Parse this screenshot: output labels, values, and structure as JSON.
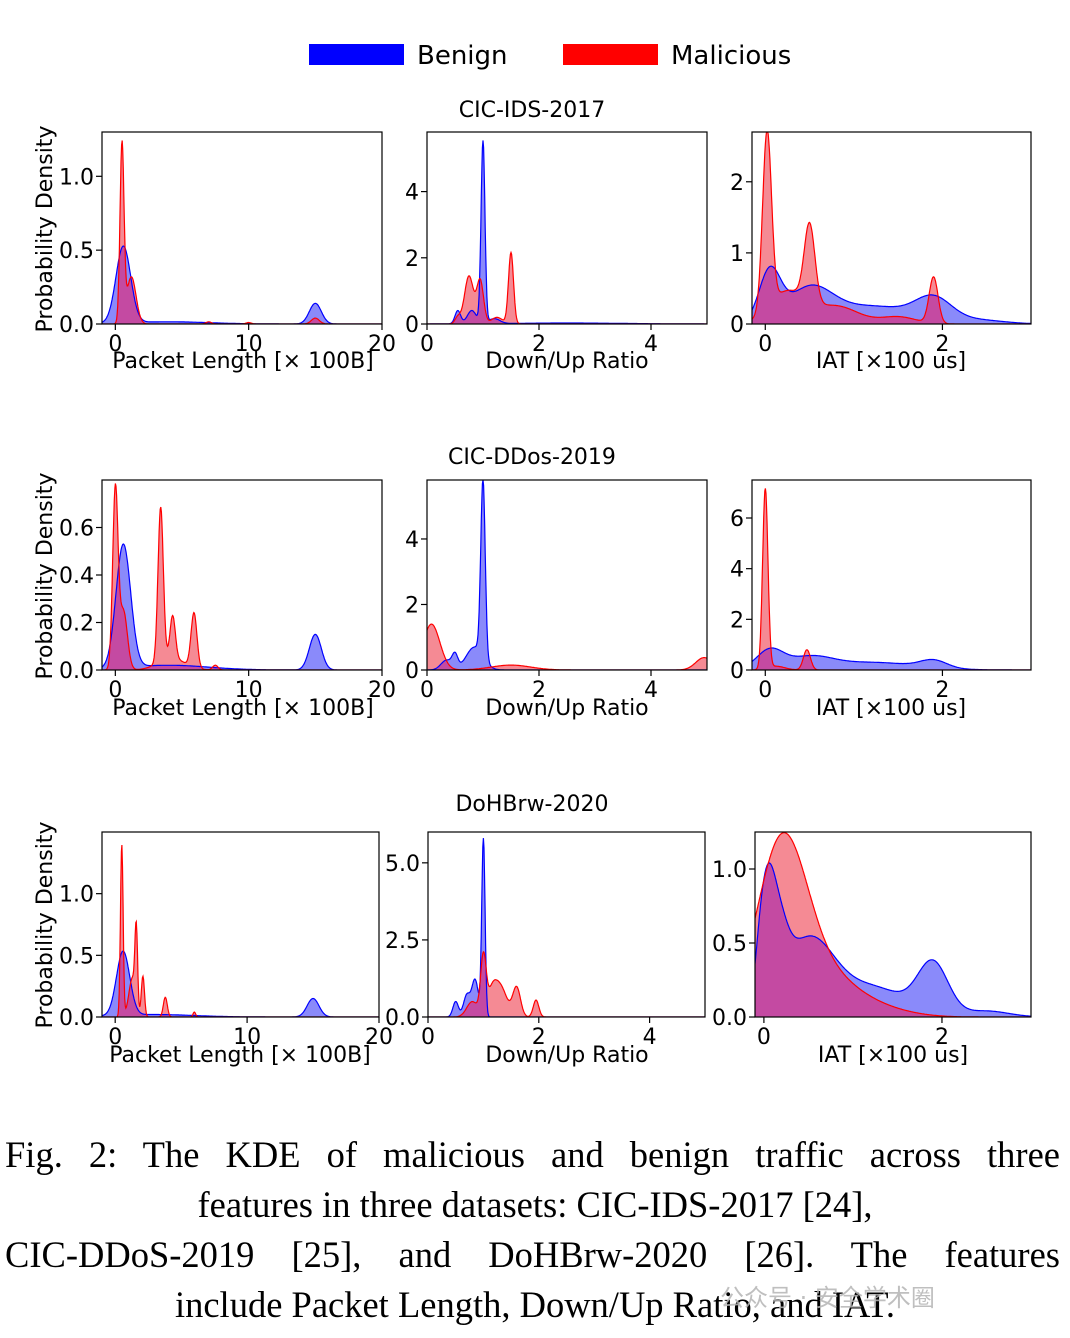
{
  "legend": {
    "items": [
      {
        "label": "Benign",
        "color": "#0000ff"
      },
      {
        "label": "Malicious",
        "color": "#ff0000"
      }
    ]
  },
  "colors": {
    "benign_fill": "#8a8afa",
    "malicious_fill": "#f58a94",
    "overlap_fill": "#c44aa2"
  },
  "row_titles": [
    "CIC-IDS-2017",
    "CIC-DDos-2019",
    "DoHBrw-2020"
  ],
  "axis_labels": {
    "ylabel": "Probability Density",
    "x_packet": "Packet Length [× 100B]",
    "x_ratio": "Down/Up Ratio",
    "x_iat": "IAT [×100 us]"
  },
  "caption": {
    "lines": [
      "Fig. 2: The KDE of malicious and benign traffic across three",
      "features in three datasets: CIC-IDS-2017 [24],",
      "CIC-DDoS-2019 [25], and DoHBrw-2020 [26]. The features",
      "include Packet Length, Down/Up Ratio, and IAT."
    ]
  },
  "watermark": "公众号 · 安全学术圈",
  "chart_data": [
    {
      "type": "area",
      "dataset": "CIC-IDS-2017",
      "feature": "Packet Length",
      "xlabel": "Packet Length [× 100B]",
      "ylabel": "Probability Density",
      "xlim": [
        -1,
        20
      ],
      "ylim": [
        0,
        1.3
      ],
      "xticks": [
        "0",
        "10",
        "20"
      ],
      "yticks": [
        "0.0",
        "0.5",
        "1.0"
      ],
      "series": [
        {
          "name": "Benign",
          "peaks": [
            [
              0.6,
              0.52,
              0.55
            ],
            [
              15,
              0.14,
              0.45
            ],
            [
              4,
              0.015,
              3
            ]
          ]
        },
        {
          "name": "Malicious",
          "peaks": [
            [
              0.5,
              1.2,
              0.15
            ],
            [
              1.2,
              0.32,
              0.35
            ],
            [
              7,
              0.015,
              0.2
            ],
            [
              15,
              0.04,
              0.3
            ],
            [
              10,
              0.01,
              0.2
            ]
          ]
        }
      ]
    },
    {
      "type": "area",
      "dataset": "CIC-IDS-2017",
      "feature": "Down/Up Ratio",
      "xlabel": "Down/Up Ratio",
      "ylim": [
        0,
        5.8
      ],
      "xlim": [
        0,
        5
      ],
      "xticks": [
        "0",
        "2",
        "4"
      ],
      "yticks": [
        "0",
        "2",
        "4"
      ],
      "series": [
        {
          "name": "Benign",
          "peaks": [
            [
              1.0,
              5.5,
              0.035
            ],
            [
              0.55,
              0.4,
              0.05
            ],
            [
              0.8,
              0.4,
              0.08
            ],
            [
              1.2,
              0.15,
              0.1
            ],
            [
              2.5,
              0.03,
              1
            ]
          ]
        },
        {
          "name": "Malicious",
          "peaks": [
            [
              0.75,
              1.45,
              0.08
            ],
            [
              0.95,
              1.3,
              0.06
            ],
            [
              1.5,
              2.15,
              0.045
            ],
            [
              0.55,
              0.2,
              0.05
            ],
            [
              1.25,
              0.2,
              0.1
            ]
          ]
        }
      ]
    },
    {
      "type": "area",
      "dataset": "CIC-IDS-2017",
      "feature": "IAT",
      "xlabel": "IAT [×100 us]",
      "ylim": [
        0,
        2.7
      ],
      "xlim": [
        -0.15,
        3.0
      ],
      "xticks": [
        "0",
        "2"
      ],
      "yticks": [
        "0",
        "1",
        "2"
      ],
      "series": [
        {
          "name": "Benign",
          "peaks": [
            [
              0.05,
              0.7,
              0.12
            ],
            [
              0.5,
              0.45,
              0.25
            ],
            [
              1.2,
              0.25,
              0.5
            ],
            [
              1.9,
              0.3,
              0.2
            ],
            [
              2.4,
              0.05,
              0.3
            ]
          ]
        },
        {
          "name": "Malicious",
          "peaks": [
            [
              0.02,
              2.5,
              0.05
            ],
            [
              0.5,
              1.1,
              0.06
            ],
            [
              0.25,
              0.45,
              0.2
            ],
            [
              0.8,
              0.25,
              0.25
            ],
            [
              1.9,
              0.65,
              0.05
            ],
            [
              1.5,
              0.1,
              0.2
            ]
          ]
        }
      ]
    },
    {
      "type": "area",
      "dataset": "CIC-DDos-2019",
      "feature": "Packet Length",
      "xlabel": "Packet Length [× 100B]",
      "ylabel": "Probability Density",
      "xlim": [
        -1,
        20
      ],
      "ylim": [
        0,
        0.8
      ],
      "xticks": [
        "0",
        "10",
        "20"
      ],
      "yticks": [
        "0.0",
        "0.2",
        "0.4",
        "0.6"
      ],
      "series": [
        {
          "name": "Benign",
          "peaks": [
            [
              0.6,
              0.52,
              0.55
            ],
            [
              15,
              0.15,
              0.45
            ],
            [
              4,
              0.02,
              3
            ]
          ]
        },
        {
          "name": "Malicious",
          "peaks": [
            [
              0.0,
              0.75,
              0.2
            ],
            [
              0.6,
              0.25,
              0.3
            ],
            [
              3.4,
              0.65,
              0.2
            ],
            [
              4.3,
              0.18,
              0.2
            ],
            [
              5.9,
              0.23,
              0.22
            ],
            [
              4.2,
              0.05,
              1
            ],
            [
              7.5,
              0.02,
              0.2
            ]
          ]
        }
      ]
    },
    {
      "type": "area",
      "dataset": "CIC-DDos-2019",
      "feature": "Down/Up Ratio",
      "xlabel": "Down/Up Ratio",
      "ylim": [
        0,
        5.8
      ],
      "xlim": [
        0,
        5
      ],
      "xticks": [
        "0",
        "2",
        "4"
      ],
      "yticks": [
        "0",
        "2",
        "4"
      ],
      "series": [
        {
          "name": "Benign",
          "peaks": [
            [
              1.0,
              5.4,
              0.04
            ],
            [
              0.5,
              0.4,
              0.05
            ],
            [
              0.85,
              0.7,
              0.15
            ],
            [
              0.35,
              0.3,
              0.1
            ]
          ]
        },
        {
          "name": "Malicious",
          "peaks": [
            [
              0.08,
              1.4,
              0.15
            ],
            [
              1.5,
              0.15,
              0.35
            ],
            [
              4.95,
              0.38,
              0.15
            ]
          ]
        }
      ]
    },
    {
      "type": "area",
      "dataset": "CIC-DDos-2019",
      "feature": "IAT",
      "xlabel": "IAT [×100 us]",
      "ylim": [
        0,
        7.5
      ],
      "xlim": [
        -0.15,
        3.0
      ],
      "xticks": [
        "0",
        "2"
      ],
      "yticks": [
        "0",
        "2",
        "4",
        "6"
      ],
      "series": [
        {
          "name": "Benign",
          "peaks": [
            [
              0.05,
              0.75,
              0.15
            ],
            [
              0.5,
              0.45,
              0.25
            ],
            [
              1.2,
              0.3,
              0.5
            ],
            [
              1.9,
              0.3,
              0.15
            ]
          ]
        },
        {
          "name": "Malicious",
          "peaks": [
            [
              0.0,
              7.1,
              0.03
            ],
            [
              0.47,
              0.8,
              0.04
            ],
            [
              0.12,
              0.15,
              0.1
            ]
          ]
        }
      ]
    },
    {
      "type": "area",
      "dataset": "DoHBrw-2020",
      "feature": "Packet Length",
      "xlabel": "Packet Length [× 100B]",
      "ylabel": "Probability Density",
      "xlim": [
        -1,
        20
      ],
      "ylim": [
        0,
        1.5
      ],
      "xticks": [
        "0",
        "10",
        "20"
      ],
      "yticks": [
        "0.0",
        "0.5",
        "1.0"
      ],
      "series": [
        {
          "name": "Benign",
          "peaks": [
            [
              0.6,
              0.52,
              0.5
            ],
            [
              15,
              0.15,
              0.45
            ],
            [
              3,
              0.02,
              3
            ]
          ]
        },
        {
          "name": "Malicious",
          "peaks": [
            [
              0.5,
              1.4,
              0.1
            ],
            [
              1.2,
              0.2,
              0.25
            ],
            [
              1.6,
              0.63,
              0.1
            ],
            [
              2.1,
              0.33,
              0.12
            ],
            [
              3.8,
              0.16,
              0.15
            ],
            [
              6.0,
              0.04,
              0.1
            ],
            [
              1.4,
              0.15,
              0.2
            ]
          ]
        }
      ]
    },
    {
      "type": "area",
      "dataset": "DoHBrw-2020",
      "feature": "Down/Up Ratio",
      "xlabel": "Down/Up Ratio",
      "ylim": [
        0,
        6.0
      ],
      "xlim": [
        0,
        5
      ],
      "xticks": [
        "0",
        "2",
        "4"
      ],
      "yticks": [
        "0.0",
        "2.5",
        "5.0"
      ],
      "series": [
        {
          "name": "Benign",
          "peaks": [
            [
              1.0,
              5.75,
              0.03
            ],
            [
              0.5,
              0.5,
              0.05
            ],
            [
              0.7,
              0.7,
              0.06
            ],
            [
              0.85,
              1.2,
              0.06
            ]
          ]
        },
        {
          "name": "Malicious",
          "peaks": [
            [
              1.0,
              1.9,
              0.05
            ],
            [
              0.8,
              0.5,
              0.1
            ],
            [
              1.3,
              1.0,
              0.12
            ],
            [
              1.6,
              0.95,
              0.07
            ],
            [
              1.95,
              0.55,
              0.05
            ],
            [
              1.15,
              0.6,
              0.08
            ]
          ]
        }
      ]
    },
    {
      "type": "area",
      "dataset": "DoHBrw-2020",
      "feature": "IAT",
      "xlabel": "IAT [×100 us]",
      "ylim": [
        0,
        1.25
      ],
      "xlim": [
        -0.1,
        3.0
      ],
      "xticks": [
        "0",
        "2"
      ],
      "yticks": [
        "0.0",
        "0.5",
        "1.0"
      ],
      "series": [
        {
          "name": "Benign",
          "peaks": [
            [
              0.02,
              0.45,
              0.08
            ],
            [
              0.12,
              0.55,
              0.12
            ],
            [
              0.5,
              0.5,
              0.28
            ],
            [
              1.2,
              0.2,
              0.4
            ],
            [
              1.9,
              0.34,
              0.17
            ],
            [
              2.5,
              0.04,
              0.25
            ],
            [
              -0.05,
              0.1,
              0.05
            ]
          ]
        },
        {
          "name": "Malicious",
          "peaks": [
            [
              0.2,
              1.15,
              0.28
            ],
            [
              0.7,
              0.25,
              0.35
            ],
            [
              1.3,
              0.05,
              0.35
            ]
          ]
        }
      ]
    }
  ]
}
